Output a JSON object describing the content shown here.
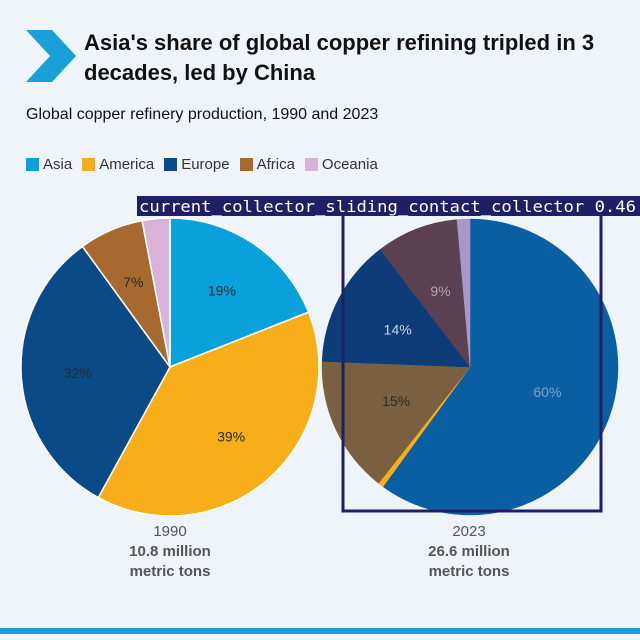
{
  "header": {
    "title": "Asia's share of global copper refining tripled in 3 decades, led by China"
  },
  "subtitle": "Global copper refinery production, 1990 and 2023",
  "colors": {
    "accent": "#1aa0d8",
    "detection_box": "#1f1f66"
  },
  "legend": [
    {
      "name": "Asia",
      "color": "#0aa0dc"
    },
    {
      "name": "America",
      "color": "#f7ae18"
    },
    {
      "name": "Europe",
      "color": "#0a4a86"
    },
    {
      "name": "Africa",
      "color": "#a8692e"
    },
    {
      "name": "Oceania",
      "color": "#d8b2d8"
    }
  ],
  "chart_data": [
    {
      "type": "pie",
      "title": "1990",
      "total_label": "10.8 million",
      "unit_label": "metric tons",
      "slices": [
        {
          "name": "Asia",
          "value": 19,
          "label": "19%"
        },
        {
          "name": "America",
          "value": 39,
          "label": "39%"
        },
        {
          "name": "Europe",
          "value": 32,
          "label": "32%"
        },
        {
          "name": "Africa",
          "value": 7,
          "label": "7%"
        },
        {
          "name": "Oceania",
          "value": 3,
          "label": ""
        }
      ]
    },
    {
      "type": "pie",
      "title": "2023",
      "total_label": "26.6 million",
      "unit_label": "metric tons",
      "slices": [
        {
          "name": "Asia",
          "value": 60,
          "label": "60%",
          "color": "#0a5fa2"
        },
        {
          "name": "America",
          "value": 0.6,
          "label": "",
          "color": "#f7ae18"
        },
        {
          "name": "Africa",
          "value": 15,
          "label": "15%",
          "color": "#7a6040"
        },
        {
          "name": "Europe",
          "value": 14,
          "label": "14%",
          "color": "#0d3c78"
        },
        {
          "name": "Africa",
          "value": 9,
          "label": "9%",
          "color": "#5a4050"
        },
        {
          "name": "Oceania",
          "value": 1.4,
          "label": "",
          "color": "#a898c8"
        }
      ]
    }
  ],
  "detection": {
    "label": "current_collector_sliding_contact_collector 0.46"
  },
  "captions": [
    {
      "year": "1990",
      "amount": "10.8 million",
      "unit": "metric tons"
    },
    {
      "year": "2023",
      "amount": "26.6 million",
      "unit": "metric tons"
    }
  ]
}
